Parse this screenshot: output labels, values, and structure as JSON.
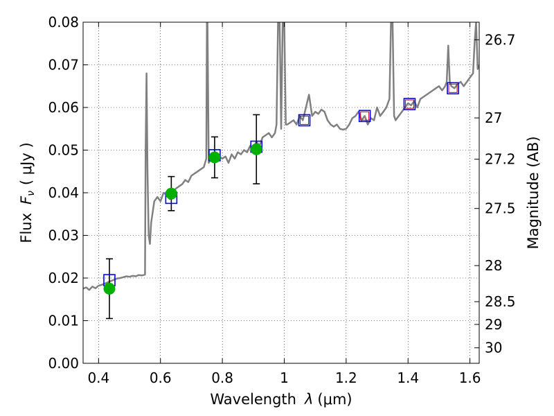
{
  "chart_data": {
    "type": "scatter",
    "xlabel_main": "Wavelength",
    "xlabel_symbol": "λ",
    "xlabel_unit": "(μm)",
    "ylabel_main": "Flux",
    "ylabel_symbol": "F",
    "ylabel_subscript": "ν",
    "ylabel_unit": "( μJy )",
    "y2label": "Magnitude (AB)",
    "xlim": [
      0.35,
      1.63
    ],
    "ylim": [
      0.0,
      0.08
    ],
    "xticks": [
      0.4,
      0.6,
      0.8,
      1.0,
      1.2,
      1.4,
      1.6
    ],
    "xtick_labels": [
      "0.4",
      "0.6",
      "0.8",
      "1",
      "1.2",
      "1.4",
      "1.6"
    ],
    "yticks": [
      0.0,
      0.01,
      0.02,
      0.03,
      0.04,
      0.05,
      0.06,
      0.07,
      0.08
    ],
    "ytick_labels": [
      "0.00",
      "0.01",
      "0.02",
      "0.03",
      "0.04",
      "0.05",
      "0.06",
      "0.07",
      "0.08"
    ],
    "mag_ticks": [
      "26.7",
      "27",
      "27.2",
      "27.5",
      "28",
      "28.5",
      "29",
      "30"
    ],
    "grid": true,
    "colors": {
      "spectrum": "#808080",
      "observed": "#00b000",
      "model_box": "#0000ff",
      "inner_box": "#cc0000",
      "errorbar": "#000000"
    },
    "spectrum": {
      "x": [
        0.35,
        0.36,
        0.37,
        0.38,
        0.39,
        0.4,
        0.41,
        0.42,
        0.43,
        0.44,
        0.45,
        0.46,
        0.47,
        0.48,
        0.49,
        0.5,
        0.51,
        0.52,
        0.53,
        0.54,
        0.55,
        0.552,
        0.555,
        0.558,
        0.562,
        0.566,
        0.57,
        0.58,
        0.59,
        0.6,
        0.61,
        0.62,
        0.63,
        0.64,
        0.65,
        0.66,
        0.67,
        0.68,
        0.69,
        0.7,
        0.71,
        0.72,
        0.73,
        0.74,
        0.748,
        0.75,
        0.752,
        0.756,
        0.76,
        0.77,
        0.78,
        0.79,
        0.8,
        0.81,
        0.82,
        0.83,
        0.84,
        0.85,
        0.86,
        0.87,
        0.88,
        0.89,
        0.9,
        0.91,
        0.92,
        0.93,
        0.94,
        0.95,
        0.96,
        0.97,
        0.975,
        0.98,
        0.985,
        0.99,
        0.995,
        1.0,
        1.005,
        1.01,
        1.02,
        1.03,
        1.04,
        1.05,
        1.06,
        1.07,
        1.08,
        1.09,
        1.1,
        1.11,
        1.12,
        1.13,
        1.14,
        1.15,
        1.16,
        1.17,
        1.18,
        1.19,
        1.2,
        1.21,
        1.22,
        1.23,
        1.24,
        1.25,
        1.26,
        1.27,
        1.28,
        1.29,
        1.3,
        1.31,
        1.32,
        1.33,
        1.34,
        1.345,
        1.35,
        1.355,
        1.36,
        1.37,
        1.38,
        1.39,
        1.4,
        1.41,
        1.42,
        1.43,
        1.44,
        1.45,
        1.46,
        1.47,
        1.48,
        1.49,
        1.5,
        1.51,
        1.52,
        1.525,
        1.53,
        1.535,
        1.54,
        1.55,
        1.56,
        1.57,
        1.58,
        1.59,
        1.6,
        1.61,
        1.615,
        1.62,
        1.625,
        1.63
      ],
      "y": [
        0.0175,
        0.0178,
        0.0172,
        0.018,
        0.0176,
        0.0182,
        0.0184,
        0.0187,
        0.019,
        0.0193,
        0.0196,
        0.0199,
        0.02,
        0.0202,
        0.0204,
        0.0203,
        0.0205,
        0.0204,
        0.0207,
        0.0206,
        0.0208,
        0.05,
        0.068,
        0.045,
        0.03,
        0.028,
        0.033,
        0.038,
        0.039,
        0.038,
        0.04,
        0.0395,
        0.0385,
        0.04,
        0.041,
        0.0415,
        0.042,
        0.043,
        0.0425,
        0.044,
        0.0445,
        0.045,
        0.0455,
        0.046,
        0.048,
        0.08,
        0.08,
        0.047,
        0.0475,
        0.048,
        0.049,
        0.0485,
        0.048,
        0.0485,
        0.047,
        0.049,
        0.048,
        0.0495,
        0.049,
        0.05,
        0.0495,
        0.051,
        0.0505,
        0.052,
        0.051,
        0.053,
        0.0535,
        0.054,
        0.053,
        0.054,
        0.056,
        0.08,
        0.08,
        0.055,
        0.08,
        0.08,
        0.056,
        0.056,
        0.0565,
        0.057,
        0.056,
        0.058,
        0.057,
        0.06,
        0.063,
        0.058,
        0.059,
        0.0585,
        0.0595,
        0.059,
        0.057,
        0.056,
        0.0555,
        0.056,
        0.055,
        0.0548,
        0.055,
        0.056,
        0.0575,
        0.058,
        0.059,
        0.057,
        0.058,
        0.056,
        0.0575,
        0.057,
        0.06,
        0.058,
        0.059,
        0.06,
        0.062,
        0.08,
        0.08,
        0.058,
        0.057,
        0.058,
        0.059,
        0.06,
        0.061,
        0.0605,
        0.0615,
        0.06,
        0.062,
        0.0625,
        0.063,
        0.0635,
        0.064,
        0.0645,
        0.065,
        0.064,
        0.065,
        0.066,
        0.0745,
        0.066,
        0.065,
        0.0645,
        0.0655,
        0.066,
        0.065,
        0.066,
        0.067,
        0.068,
        0.075,
        0.08,
        0.069,
        0.07
      ]
    },
    "observed": [
      {
        "x": 0.435,
        "y": 0.0175,
        "err": 0.007
      },
      {
        "x": 0.635,
        "y": 0.0398,
        "err": 0.004
      },
      {
        "x": 0.775,
        "y": 0.0483,
        "err": 0.0048
      },
      {
        "x": 0.91,
        "y": 0.0502,
        "err": 0.0081
      }
    ],
    "model_boxes": [
      {
        "x": 0.435,
        "y": 0.0195,
        "inner": false
      },
      {
        "x": 0.635,
        "y": 0.0388,
        "inner": false
      },
      {
        "x": 0.775,
        "y": 0.0488,
        "inner": false
      },
      {
        "x": 0.91,
        "y": 0.0508,
        "inner": false
      },
      {
        "x": 1.065,
        "y": 0.057,
        "inner": true
      },
      {
        "x": 1.26,
        "y": 0.058,
        "inner": true
      },
      {
        "x": 1.405,
        "y": 0.0608,
        "inner": true
      },
      {
        "x": 1.545,
        "y": 0.0645,
        "inner": true
      }
    ]
  }
}
